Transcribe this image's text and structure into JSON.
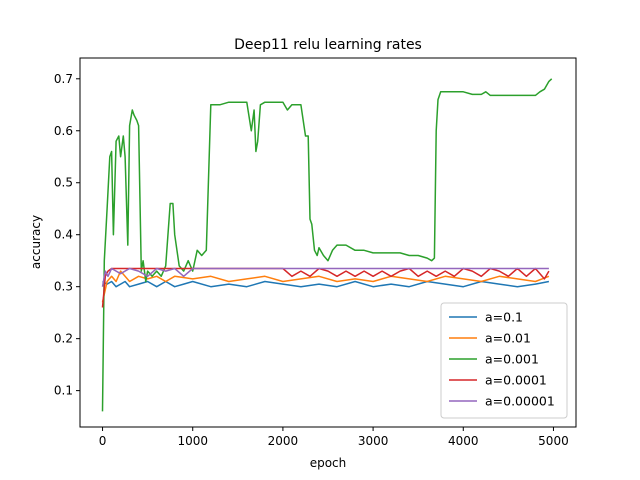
{
  "chart_data": {
    "type": "line",
    "title": "Deep11 relu learning rates",
    "xlabel": "epoch",
    "ylabel": "accuracy",
    "xlim": [
      -250,
      5250
    ],
    "ylim": [
      0.03,
      0.74
    ],
    "xticks": [
      0,
      1000,
      2000,
      3000,
      4000,
      5000
    ],
    "yticks": [
      0.1,
      0.2,
      0.3,
      0.4,
      0.5,
      0.6,
      0.7
    ],
    "xtick_labels": [
      "0",
      "1000",
      "2000",
      "3000",
      "4000",
      "5000"
    ],
    "ytick_labels": [
      "0.1",
      "0.2",
      "0.3",
      "0.4",
      "0.5",
      "0.6",
      "0.7"
    ],
    "grid": false,
    "legend_position": "lower-right",
    "series": [
      {
        "name": "a=0.1",
        "color": "#1f77b4",
        "x": [
          0,
          50,
          100,
          150,
          200,
          250,
          300,
          400,
          500,
          600,
          700,
          800,
          900,
          1000,
          1200,
          1400,
          1600,
          1800,
          2000,
          2200,
          2400,
          2600,
          2800,
          3000,
          3200,
          3400,
          3600,
          3800,
          4000,
          4200,
          4400,
          4600,
          4800,
          4950
        ],
        "y": [
          0.31,
          0.305,
          0.31,
          0.3,
          0.305,
          0.31,
          0.3,
          0.305,
          0.31,
          0.3,
          0.31,
          0.3,
          0.305,
          0.31,
          0.3,
          0.305,
          0.3,
          0.31,
          0.305,
          0.3,
          0.305,
          0.3,
          0.31,
          0.3,
          0.305,
          0.3,
          0.31,
          0.305,
          0.3,
          0.31,
          0.305,
          0.3,
          0.305,
          0.31
        ]
      },
      {
        "name": "a=0.01",
        "color": "#ff7f0e",
        "x": [
          0,
          50,
          100,
          150,
          200,
          300,
          400,
          500,
          600,
          700,
          800,
          1000,
          1200,
          1400,
          1600,
          1800,
          2000,
          2200,
          2400,
          2600,
          2800,
          3000,
          3200,
          3400,
          3600,
          3800,
          4000,
          4200,
          4400,
          4600,
          4800,
          4950
        ],
        "y": [
          0.27,
          0.31,
          0.32,
          0.31,
          0.33,
          0.31,
          0.32,
          0.315,
          0.32,
          0.31,
          0.32,
          0.315,
          0.32,
          0.31,
          0.315,
          0.32,
          0.31,
          0.315,
          0.32,
          0.31,
          0.315,
          0.31,
          0.32,
          0.315,
          0.31,
          0.32,
          0.315,
          0.31,
          0.32,
          0.315,
          0.31,
          0.32
        ]
      },
      {
        "name": "a=0.001",
        "color": "#2ca02c",
        "x": [
          0,
          20,
          50,
          80,
          100,
          120,
          150,
          180,
          200,
          230,
          250,
          280,
          300,
          330,
          350,
          380,
          400,
          430,
          450,
          480,
          500,
          550,
          600,
          650,
          700,
          750,
          780,
          800,
          850,
          900,
          950,
          1000,
          1050,
          1100,
          1150,
          1200,
          1300,
          1400,
          1500,
          1600,
          1650,
          1680,
          1700,
          1720,
          1750,
          1800,
          1900,
          2000,
          2050,
          2100,
          2200,
          2250,
          2280,
          2300,
          2320,
          2350,
          2380,
          2400,
          2450,
          2500,
          2550,
          2600,
          2700,
          2800,
          2900,
          3000,
          3100,
          3200,
          3300,
          3400,
          3500,
          3600,
          3650,
          3680,
          3700,
          3720,
          3750,
          3800,
          3900,
          4000,
          4100,
          4200,
          4250,
          4300,
          4400,
          4500,
          4600,
          4700,
          4800,
          4850,
          4900,
          4950,
          4980
        ],
        "y": [
          0.06,
          0.35,
          0.45,
          0.55,
          0.56,
          0.4,
          0.58,
          0.59,
          0.55,
          0.59,
          0.55,
          0.38,
          0.61,
          0.64,
          0.63,
          0.62,
          0.61,
          0.33,
          0.35,
          0.31,
          0.33,
          0.32,
          0.33,
          0.32,
          0.34,
          0.46,
          0.46,
          0.4,
          0.34,
          0.33,
          0.35,
          0.33,
          0.37,
          0.36,
          0.37,
          0.65,
          0.65,
          0.655,
          0.655,
          0.655,
          0.6,
          0.64,
          0.56,
          0.58,
          0.65,
          0.655,
          0.655,
          0.655,
          0.64,
          0.65,
          0.65,
          0.59,
          0.59,
          0.43,
          0.42,
          0.37,
          0.36,
          0.375,
          0.36,
          0.35,
          0.37,
          0.38,
          0.38,
          0.37,
          0.37,
          0.365,
          0.365,
          0.365,
          0.365,
          0.36,
          0.36,
          0.355,
          0.35,
          0.355,
          0.6,
          0.66,
          0.675,
          0.675,
          0.675,
          0.675,
          0.67,
          0.67,
          0.675,
          0.668,
          0.668,
          0.668,
          0.668,
          0.668,
          0.668,
          0.675,
          0.68,
          0.695,
          0.7
        ]
      },
      {
        "name": "a=0.0001",
        "color": "#d62728",
        "x": [
          0,
          30,
          60,
          100,
          150,
          200,
          300,
          400,
          600,
          800,
          1000,
          1200,
          1400,
          1600,
          1800,
          2000,
          2100,
          2200,
          2300,
          2400,
          2500,
          2600,
          2700,
          2800,
          2900,
          3000,
          3100,
          3200,
          3300,
          3400,
          3500,
          3600,
          3700,
          3800,
          3900,
          4000,
          4100,
          4200,
          4300,
          4400,
          4500,
          4600,
          4700,
          4800,
          4900,
          4950
        ],
        "y": [
          0.26,
          0.32,
          0.33,
          0.335,
          0.335,
          0.335,
          0.335,
          0.335,
          0.335,
          0.335,
          0.335,
          0.335,
          0.335,
          0.335,
          0.335,
          0.335,
          0.32,
          0.33,
          0.32,
          0.335,
          0.33,
          0.32,
          0.33,
          0.32,
          0.33,
          0.32,
          0.33,
          0.32,
          0.33,
          0.335,
          0.32,
          0.33,
          0.32,
          0.33,
          0.32,
          0.335,
          0.33,
          0.32,
          0.335,
          0.33,
          0.32,
          0.335,
          0.32,
          0.335,
          0.315,
          0.33
        ]
      },
      {
        "name": "a=0.00001",
        "color": "#9467bd",
        "x": [
          0,
          30,
          60,
          100,
          200,
          300,
          400,
          500,
          600,
          700,
          800,
          900,
          1000,
          1200,
          1400,
          1600,
          1800,
          2000,
          2200,
          2400,
          2600,
          2800,
          3000,
          3200,
          3400,
          3600,
          3800,
          4000,
          4200,
          4400,
          4600,
          4800,
          4950
        ],
        "y": [
          0.3,
          0.33,
          0.32,
          0.335,
          0.325,
          0.335,
          0.33,
          0.32,
          0.335,
          0.33,
          0.335,
          0.32,
          0.335,
          0.335,
          0.335,
          0.335,
          0.335,
          0.335,
          0.335,
          0.335,
          0.335,
          0.335,
          0.335,
          0.335,
          0.335,
          0.335,
          0.335,
          0.335,
          0.335,
          0.335,
          0.335,
          0.335,
          0.335
        ]
      }
    ]
  }
}
